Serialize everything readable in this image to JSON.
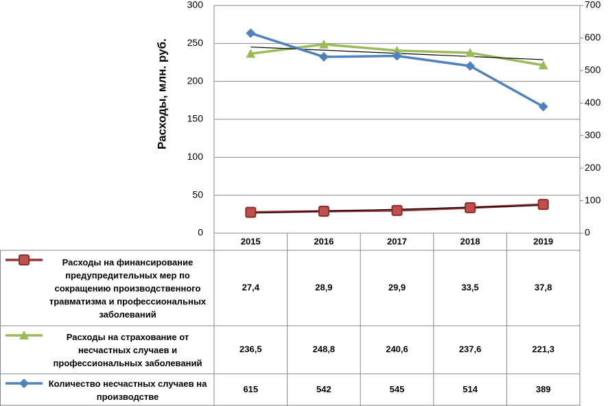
{
  "chart_data": {
    "type": "line",
    "y_label": "Расходы, млн. руб.",
    "categories": [
      "2015",
      "2016",
      "2017",
      "2018",
      "2019"
    ],
    "ylim": [
      0,
      300
    ],
    "yticks": [
      0,
      50,
      100,
      150,
      200,
      250,
      300
    ],
    "y2lim": [
      0,
      700
    ],
    "y2ticks": [
      0,
      100,
      200,
      300,
      400,
      500,
      600,
      700
    ],
    "grid": true,
    "series": [
      {
        "name": "Расходы на финансирование предупредительных мер по сокращению производственного травматизма и профессиональных заболеваний",
        "color": "#c0504d",
        "marker": "square",
        "trendline": true,
        "values": [
          27.4,
          28.9,
          29.9,
          33.5,
          37.8
        ],
        "value_labels": [
          "27,4",
          "28,9",
          "29,9",
          "33,5",
          "37,8"
        ]
      },
      {
        "name": "Расходы на страхование от несчастных случаев и профессиональных заболеваний",
        "color": "#9bbb59",
        "marker": "triangle",
        "trendline": true,
        "values": [
          236.5,
          248.8,
          240.6,
          237.6,
          221.3
        ],
        "value_labels": [
          "236,5",
          "248,8",
          "240,6",
          "237,6",
          "221,3"
        ]
      },
      {
        "name": "Количество несчастных случаев на производстве",
        "color": "#4f81bd",
        "marker": "diamond",
        "axis": "y2",
        "values": [
          615,
          542,
          545,
          514,
          389
        ]
      }
    ]
  }
}
